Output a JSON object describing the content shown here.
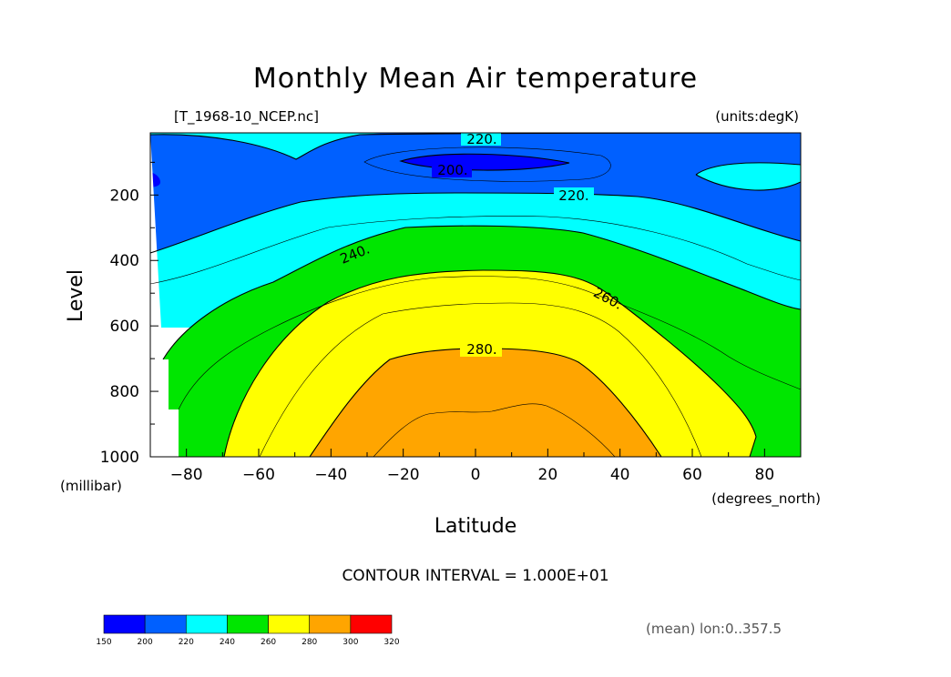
{
  "chart_data": {
    "type": "contour",
    "title": "Monthly Mean Air temperature",
    "file_label": "[T_1968-10_NCEP.nc]",
    "units_label": "(units:degK)",
    "xlabel": "Latitude",
    "x_units": "(degrees_north)",
    "ylabel": "Level",
    "y_units": "(millibar)",
    "xlim": [
      -90,
      90
    ],
    "ylim": [
      1000,
      10
    ],
    "x_ticks": [
      -80,
      -60,
      -40,
      -20,
      0,
      20,
      40,
      60,
      80
    ],
    "x_tick_labels": [
      "−80",
      "−60",
      "−40",
      "−20",
      "0",
      "20",
      "40",
      "60",
      "80"
    ],
    "y_ticks": [
      200,
      400,
      600,
      800,
      1000
    ],
    "y_tick_labels": [
      "200",
      "400",
      "600",
      "800",
      "1000"
    ],
    "contour_interval_text": "CONTOUR INTERVAL = 1.000E+01",
    "contour_labels": [
      "220.",
      "200.",
      "220.",
      "240.",
      "260.",
      "280."
    ],
    "footer_note": "(mean) lon:0..357.5",
    "colorbar": {
      "levels": [
        150,
        200,
        220,
        240,
        260,
        280,
        300,
        320
      ],
      "colors": [
        "#0000ff",
        "#0060ff",
        "#00ffff",
        "#00e600",
        "#ffff00",
        "#ffa500",
        "#ff0000"
      ]
    },
    "bands": [
      {
        "range": "<200",
        "color": "#0000ff"
      },
      {
        "range": "200-220",
        "color": "#0060ff"
      },
      {
        "range": "220-240",
        "color": "#00ffff"
      },
      {
        "range": "240-260",
        "color": "#00e600"
      },
      {
        "range": "260-280",
        "color": "#ffff00"
      },
      {
        "range": ">280",
        "color": "#ffa500"
      }
    ]
  }
}
